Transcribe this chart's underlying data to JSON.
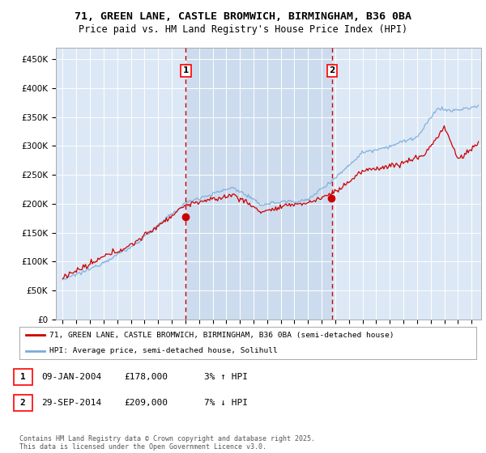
{
  "title_line1": "71, GREEN LANE, CASTLE BROMWICH, BIRMINGHAM, B36 0BA",
  "title_line2": "Price paid vs. HM Land Registry's House Price Index (HPI)",
  "plot_bg_color": "#dce8f5",
  "shaded_bg_color": "#ccdcee",
  "ylim": [
    0,
    470000
  ],
  "yticks": [
    0,
    50000,
    100000,
    150000,
    200000,
    250000,
    300000,
    350000,
    400000,
    450000
  ],
  "ytick_labels": [
    "£0",
    "£50K",
    "£100K",
    "£150K",
    "£200K",
    "£250K",
    "£300K",
    "£350K",
    "£400K",
    "£450K"
  ],
  "xlim_left": 1994.5,
  "xlim_right": 2025.7,
  "sale1_date": 2004.03,
  "sale1_price": 178000,
  "sale1_label": "1",
  "sale2_date": 2014.75,
  "sale2_price": 209000,
  "sale2_label": "2",
  "legend_line1": "71, GREEN LANE, CASTLE BROMWICH, BIRMINGHAM, B36 0BA (semi-detached house)",
  "legend_line2": "HPI: Average price, semi-detached house, Solihull",
  "annotation1_date": "09-JAN-2004",
  "annotation1_price": "£178,000",
  "annotation1_hpi": "3% ↑ HPI",
  "annotation2_date": "29-SEP-2014",
  "annotation2_price": "£209,000",
  "annotation2_hpi": "7% ↓ HPI",
  "footer": "Contains HM Land Registry data © Crown copyright and database right 2025.\nThis data is licensed under the Open Government Licence v3.0.",
  "line_color_red": "#cc0000",
  "line_color_blue": "#7aabdb",
  "dashed_line_color": "#cc0000"
}
